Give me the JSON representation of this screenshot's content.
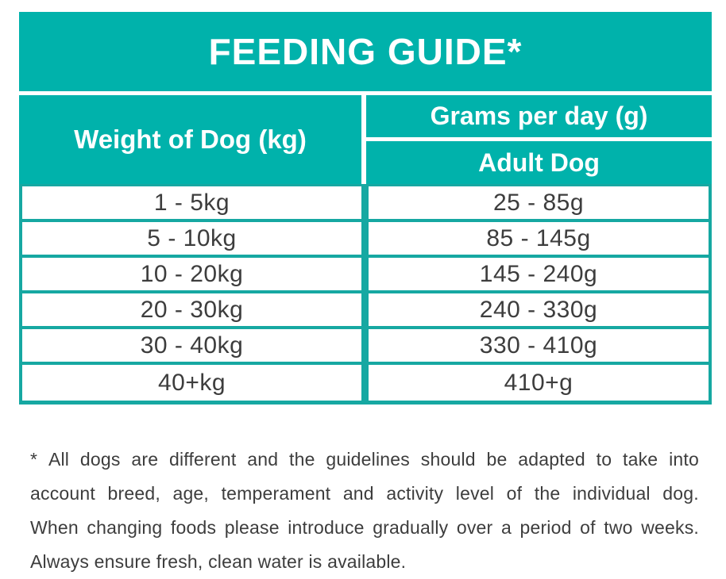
{
  "colors": {
    "teal": "#00b2ab",
    "border_teal": "#16a8a2",
    "text_dark": "#3d3d3d",
    "header_text": "#ffffff"
  },
  "title": "FEEDING GUIDE*",
  "table": {
    "col1_header": "Weight of Dog (kg)",
    "col2_header_top": "Grams per day (g)",
    "col2_header_bottom": "Adult Dog",
    "rows": [
      {
        "weight": "1 - 5kg",
        "grams": "25 - 85g"
      },
      {
        "weight": "5 - 10kg",
        "grams": "85 - 145g"
      },
      {
        "weight": "10 - 20kg",
        "grams": "145 - 240g"
      },
      {
        "weight": "20 - 30kg",
        "grams": "240 - 330g"
      },
      {
        "weight": "30 - 40kg",
        "grams": "330 - 410g"
      },
      {
        "weight": "40+kg",
        "grams": "410+g"
      }
    ]
  },
  "footnote": {
    "lines": [
      "* All dogs are different and the guidelines should be adapted to take into",
      "account breed, age, temperament and activity level of the individual dog.",
      "When changing foods please introduce gradually over a period of two weeks.",
      "Always ensure fresh, clean water is available."
    ]
  },
  "chart_data": {
    "type": "table",
    "title": "FEEDING GUIDE*",
    "columns": [
      "Weight of Dog (kg)",
      "Grams per day (g) - Adult Dog"
    ],
    "rows": [
      [
        "1 - 5kg",
        "25 - 85g"
      ],
      [
        "5 - 10kg",
        "85 - 145g"
      ],
      [
        "10 - 20kg",
        "145 - 240g"
      ],
      [
        "20 - 30kg",
        "240 - 330g"
      ],
      [
        "30 - 40kg",
        "330 - 410g"
      ],
      [
        "40+kg",
        "410+g"
      ]
    ],
    "footnote": "* All dogs are different and the guidelines should be adapted to take into account breed, age, temperament and activity level of the individual dog. When changing foods please introduce gradually over a period of two weeks. Always ensure fresh, clean water is available."
  }
}
